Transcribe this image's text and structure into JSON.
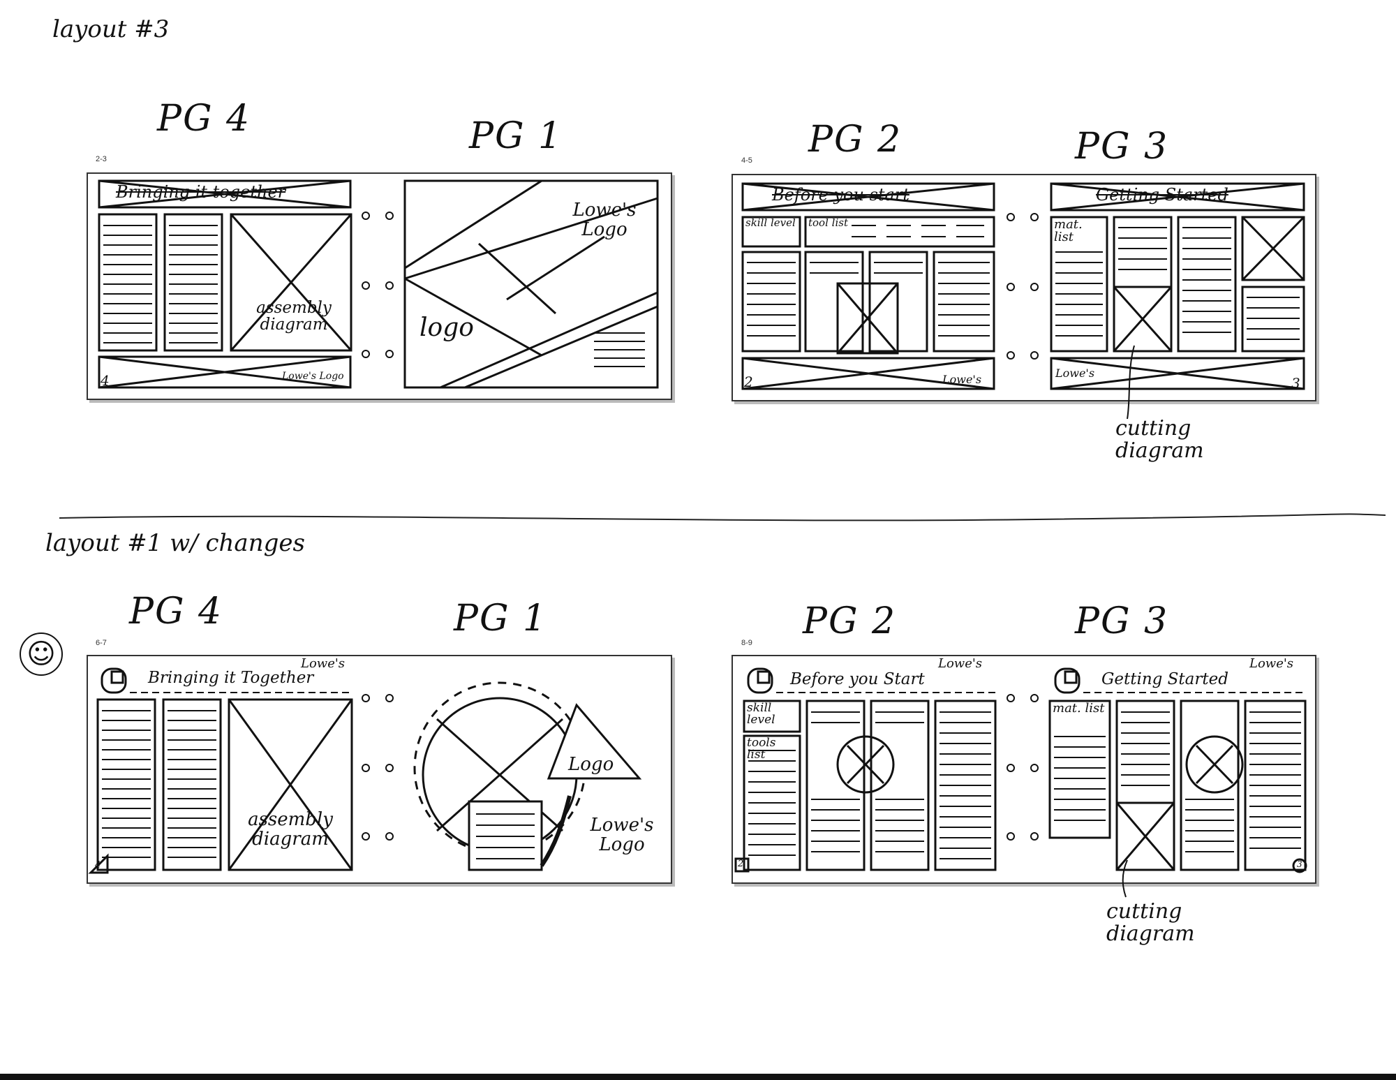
{
  "layout3": {
    "title": "layout #3",
    "spread_a": {
      "number": "2-3",
      "page_left_label": "PG 4",
      "page_right_label": "PG 1",
      "header_left": "Bringing it together",
      "assembly": "assembly diagram",
      "footer_logo": "Lowe's Logo",
      "page_num_left": "4",
      "logo_text": "logo",
      "lowes_logo": "Lowe's Logo"
    },
    "spread_b": {
      "number": "4-5",
      "page_left_label": "PG 2",
      "page_right_label": "PG 3",
      "header_left": "Before you start",
      "header_right": "Getting Started",
      "skill": "skill level",
      "tool": "tool list",
      "mat": "mat. list",
      "footer_left": "Lowe's",
      "footer_right": "Lowe's",
      "page_num_left": "2",
      "page_num_right": "3"
    },
    "callout": "cutting diagram"
  },
  "layout1": {
    "title": "layout #1 w/ changes",
    "spread_a": {
      "number": "6-7",
      "page_left_label": "PG 4",
      "page_right_label": "PG 1",
      "header_left": "Bringing it Together",
      "corner_logo": "Lowe's",
      "assembly": "assembly diagram",
      "page_num_left": "4",
      "logo_text": "Logo",
      "lowes_logo": "Lowe's Logo"
    },
    "spread_b": {
      "number": "8-9",
      "page_left_label": "PG 2",
      "page_right_label": "PG 3",
      "header_left": "Before you Start",
      "header_right": "Getting Started",
      "corner_logo_left": "Lowe's",
      "corner_logo_right": "Lowe's",
      "skill": "skill level",
      "tool": "tools list",
      "mat": "mat. list",
      "page_num_left": "2",
      "page_num_right": "3"
    },
    "callout": "cutting diagram"
  },
  "smiley": "☺"
}
